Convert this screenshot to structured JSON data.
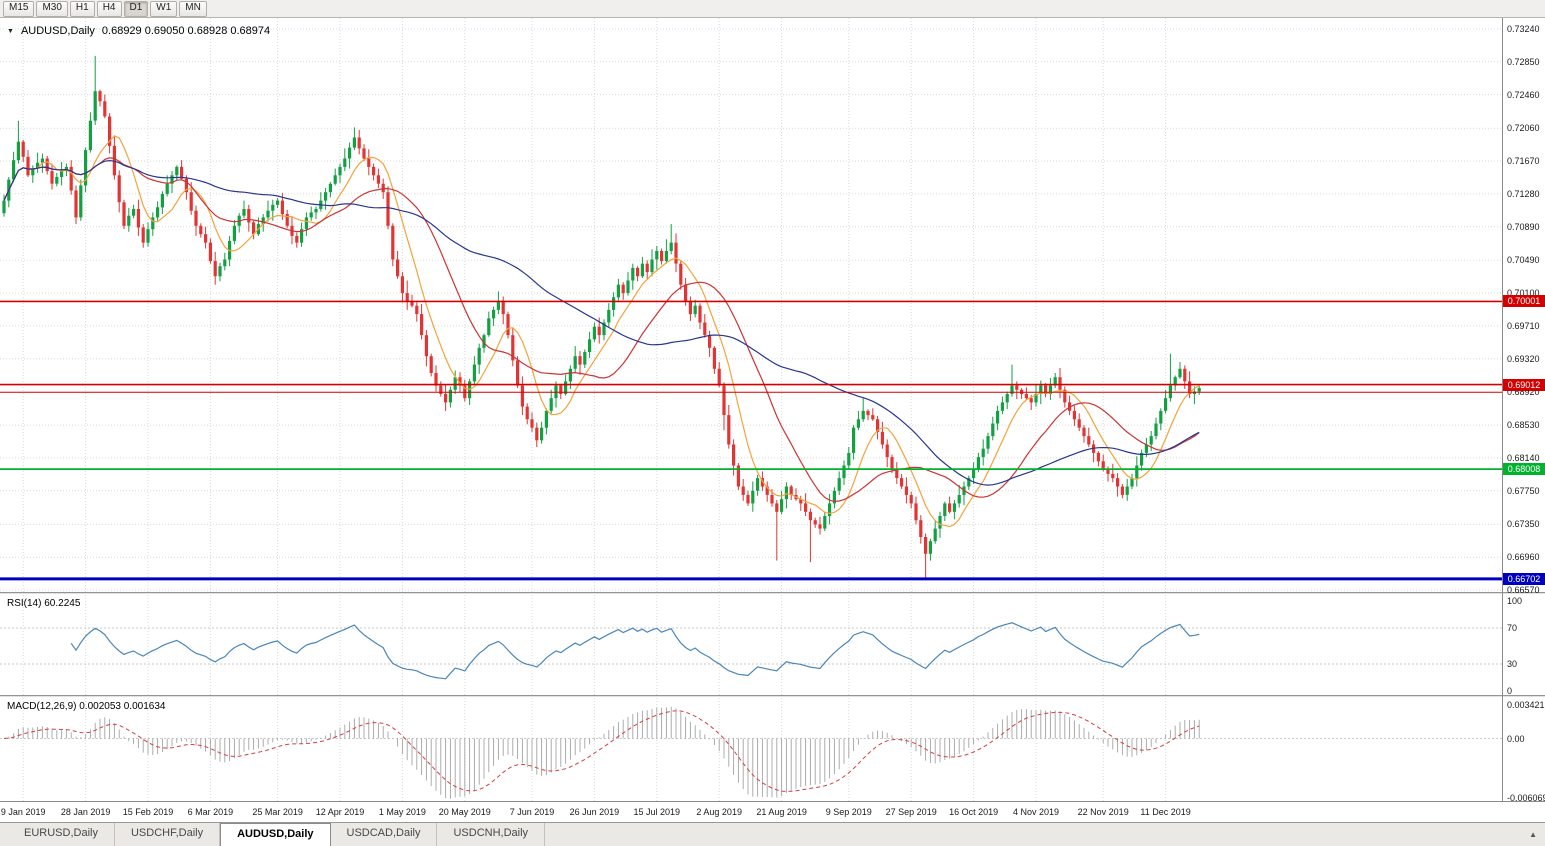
{
  "toolbar": {
    "timeframes": [
      "M15",
      "M30",
      "H1",
      "H4",
      "D1",
      "W1",
      "MN"
    ],
    "active": "D1"
  },
  "window": {
    "title": {
      "symbol": "AUDUSD,Daily",
      "ohlc": "0.68929 0.69050 0.68928 0.68974"
    }
  },
  "rsi_panel": {
    "label": "RSI(14) 60.2245",
    "period": 14,
    "axis_ticks": [
      100,
      70,
      30,
      0
    ],
    "levels": [
      70,
      30
    ],
    "line_color": "#4a86b8"
  },
  "macd_panel": {
    "label": "MACD(12,26,9) 0.002053 0.001634",
    "fast": 12,
    "slow": 26,
    "signal": 9,
    "axis_ticks": [
      "0.003421",
      "0.00",
      "-0.006069"
    ],
    "axis_max": 0.003421,
    "axis_min": -0.006069,
    "hist_color": "#a3a3a3",
    "signal_color": "#d24040"
  },
  "tabs": {
    "items": [
      "EURUSD,Daily",
      "USDCHF,Daily",
      "AUDUSD,Daily",
      "USDCAD,Daily",
      "USDCNH,Daily"
    ],
    "active": "AUDUSD,Daily",
    "scroll_icon": "▲"
  },
  "chart_data": {
    "type": "candlestick",
    "symbol": "AUDUSD",
    "timeframe": "Daily",
    "title": "AUDUSD,Daily",
    "y_top": 0.7324,
    "y_bottom": 0.6657,
    "y_axis_ticks": [
      "0.73240",
      "0.72850",
      "0.72460",
      "0.72060",
      "0.71670",
      "0.71280",
      "0.70890",
      "0.70490",
      "0.70100",
      "0.69710",
      "0.69320",
      "0.68920",
      "0.68530",
      "0.68140",
      "0.67750",
      "0.67350",
      "0.66960",
      "0.66570"
    ],
    "x_labels": [
      {
        "label": "9 Jan 2019",
        "bar": 4
      },
      {
        "label": "28 Jan 2019",
        "bar": 17
      },
      {
        "label": "15 Feb 2019",
        "bar": 30
      },
      {
        "label": "6 Mar 2019",
        "bar": 43
      },
      {
        "label": "25 Mar 2019",
        "bar": 57
      },
      {
        "label": "12 Apr 2019",
        "bar": 70
      },
      {
        "label": "1 May 2019",
        "bar": 83
      },
      {
        "label": "20 May 2019",
        "bar": 96
      },
      {
        "label": "7 Jun 2019",
        "bar": 110
      },
      {
        "label": "26 Jun 2019",
        "bar": 123
      },
      {
        "label": "15 Jul 2019",
        "bar": 136
      },
      {
        "label": "2 Aug 2019",
        "bar": 149
      },
      {
        "label": "21 Aug 2019",
        "bar": 162
      },
      {
        "label": "9 Sep 2019",
        "bar": 176
      },
      {
        "label": "27 Sep 2019",
        "bar": 189
      },
      {
        "label": "16 Oct 2019",
        "bar": 202
      },
      {
        "label": "4 Nov 2019",
        "bar": 215
      },
      {
        "label": "22 Nov 2019",
        "bar": 229
      },
      {
        "label": "11 Dec 2019",
        "bar": 242
      }
    ],
    "levels": [
      {
        "price": 0.70001,
        "label": "0.70001",
        "color": "#d40000",
        "width": 1.6
      },
      {
        "price": 0.69012,
        "label": "0.69012",
        "color": "#d40000",
        "width": 1.6
      },
      {
        "price": 0.6892,
        "label": "",
        "color": "#d40000",
        "width": 1
      },
      {
        "price": 0.68008,
        "label": "0.68008",
        "color": "#00b22d",
        "width": 1.8
      },
      {
        "price": 0.66702,
        "label": "0.66702",
        "color": "#0000c0",
        "width": 3
      }
    ],
    "bull_color": "#12a043",
    "bear_color": "#e23434",
    "moving_averages": [
      {
        "period": 8,
        "color": "#f2a33c"
      },
      {
        "period": 21,
        "color": "#cc3333"
      },
      {
        "period": 55,
        "color": "#27368f"
      }
    ],
    "first_open": 0.7105,
    "closes": [
      0.712,
      0.7145,
      0.7168,
      0.719,
      0.7172,
      0.715,
      0.7158,
      0.7165,
      0.717,
      0.7155,
      0.714,
      0.7148,
      0.7155,
      0.716,
      0.7132,
      0.71,
      0.7138,
      0.718,
      0.7215,
      0.725,
      0.7238,
      0.722,
      0.7185,
      0.715,
      0.7118,
      0.709,
      0.7102,
      0.711,
      0.7088,
      0.707,
      0.7086,
      0.71,
      0.7112,
      0.7128,
      0.714,
      0.715,
      0.716,
      0.7146,
      0.713,
      0.7108,
      0.709,
      0.708,
      0.707,
      0.7048,
      0.703,
      0.7042,
      0.705,
      0.7072,
      0.709,
      0.7102,
      0.711,
      0.7094,
      0.708,
      0.7092,
      0.71,
      0.7108,
      0.7115,
      0.712,
      0.7104,
      0.709,
      0.7078,
      0.707,
      0.7086,
      0.71,
      0.7106,
      0.711,
      0.712,
      0.713,
      0.714,
      0.715,
      0.716,
      0.717,
      0.7183,
      0.7195,
      0.7182,
      0.717,
      0.716,
      0.715,
      0.714,
      0.713,
      0.709,
      0.705,
      0.703,
      0.701,
      0.7,
      0.6995,
      0.6985,
      0.696,
      0.6935,
      0.6915,
      0.69,
      0.689,
      0.688,
      0.6895,
      0.691,
      0.69,
      0.6885,
      0.6905,
      0.6925,
      0.6945,
      0.696,
      0.698,
      0.699,
      0.7,
      0.6985,
      0.696,
      0.693,
      0.69,
      0.6875,
      0.686,
      0.685,
      0.6835,
      0.685,
      0.687,
      0.6885,
      0.69,
      0.689,
      0.6905,
      0.692,
      0.6935,
      0.6925,
      0.694,
      0.6955,
      0.697,
      0.696,
      0.6975,
      0.699,
      0.7005,
      0.702,
      0.701,
      0.7025,
      0.704,
      0.703,
      0.7045,
      0.7035,
      0.705,
      0.706,
      0.7048,
      0.706,
      0.707,
      0.7045,
      0.702,
      0.7,
      0.6985,
      0.6995,
      0.6975,
      0.696,
      0.6945,
      0.692,
      0.69,
      0.6865,
      0.683,
      0.6805,
      0.678,
      0.677,
      0.676,
      0.6775,
      0.679,
      0.678,
      0.677,
      0.676,
      0.675,
      0.6765,
      0.678,
      0.677,
      0.6765,
      0.676,
      0.675,
      0.674,
      0.6735,
      0.673,
      0.6745,
      0.676,
      0.6775,
      0.679,
      0.6805,
      0.682,
      0.685,
      0.686,
      0.687,
      0.6865,
      0.686,
      0.6845,
      0.683,
      0.6815,
      0.68,
      0.679,
      0.678,
      0.677,
      0.676,
      0.674,
      0.672,
      0.67,
      0.6715,
      0.673,
      0.6745,
      0.676,
      0.675,
      0.676,
      0.677,
      0.678,
      0.679,
      0.68,
      0.6815,
      0.6825,
      0.684,
      0.6855,
      0.687,
      0.688,
      0.689,
      0.69,
      0.6895,
      0.689,
      0.6885,
      0.688,
      0.689,
      0.69,
      0.689,
      0.69,
      0.691,
      0.6895,
      0.688,
      0.687,
      0.686,
      0.685,
      0.684,
      0.683,
      0.682,
      0.681,
      0.68,
      0.6795,
      0.679,
      0.678,
      0.677,
      0.678,
      0.679,
      0.6805,
      0.682,
      0.683,
      0.684,
      0.6855,
      0.687,
      0.6885,
      0.69,
      0.691,
      0.692,
      0.6905,
      0.689,
      0.6893,
      0.6897
    ],
    "wick_up_cycle_pips": [
      7,
      3,
      10,
      5,
      2,
      8,
      4,
      12,
      6,
      3,
      9,
      5,
      11,
      4,
      8,
      6
    ],
    "wick_down_cycle_pips": [
      4,
      8,
      3,
      11,
      6,
      2,
      9,
      5,
      12,
      4,
      7,
      3,
      10,
      6,
      5,
      8
    ],
    "special_wicks_pips": {
      "3": [
        25,
        4
      ],
      "19": [
        42,
        5
      ],
      "73": [
        12,
        3
      ],
      "84": [
        15,
        10
      ],
      "138": [
        14,
        3
      ],
      "139": [
        22,
        4
      ],
      "150": [
        4,
        18
      ],
      "161": [
        4,
        58
      ],
      "168": [
        4,
        50
      ],
      "179": [
        15,
        3
      ],
      "192": [
        4,
        30
      ],
      "210": [
        25,
        3
      ],
      "243": [
        38,
        4
      ]
    }
  }
}
